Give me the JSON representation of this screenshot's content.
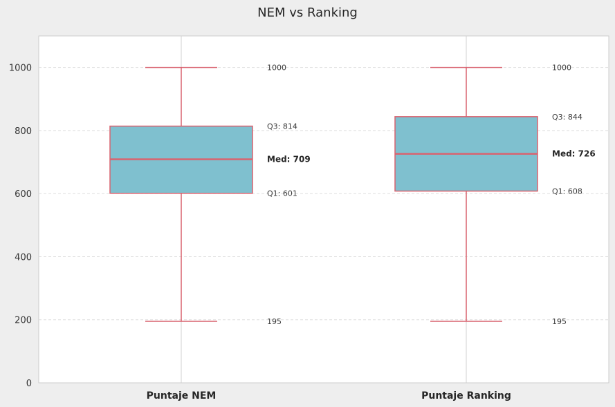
{
  "chart_data": {
    "type": "box",
    "title": "NEM vs Ranking",
    "xlabel": "",
    "ylabel": "",
    "ylim": [
      0,
      1100
    ],
    "yticks": [
      0,
      200,
      400,
      600,
      800,
      1000
    ],
    "grid": true,
    "categories": [
      "Puntaje NEM",
      "Puntaje Ranking"
    ],
    "boxes": [
      {
        "label": "Puntaje NEM",
        "min": 195,
        "q1": 601,
        "median": 709,
        "q3": 814,
        "max": 1000,
        "annotations": {
          "max": "1000",
          "q3": "Q3: 814",
          "median": "Med: 709",
          "q1": "Q1: 601",
          "min": "195"
        }
      },
      {
        "label": "Puntaje Ranking",
        "min": 195,
        "q1": 608,
        "median": 726,
        "q3": 844,
        "max": 1000,
        "annotations": {
          "max": "1000",
          "q3": "Q3: 844",
          "median": "Med: 726",
          "q1": "Q1: 608",
          "min": "195"
        }
      }
    ],
    "colors": {
      "box_fill": "#7fc0cf",
      "box_edge": "#d9626f",
      "grid": "#dddddd",
      "plot_bg": "#ffffff"
    }
  }
}
